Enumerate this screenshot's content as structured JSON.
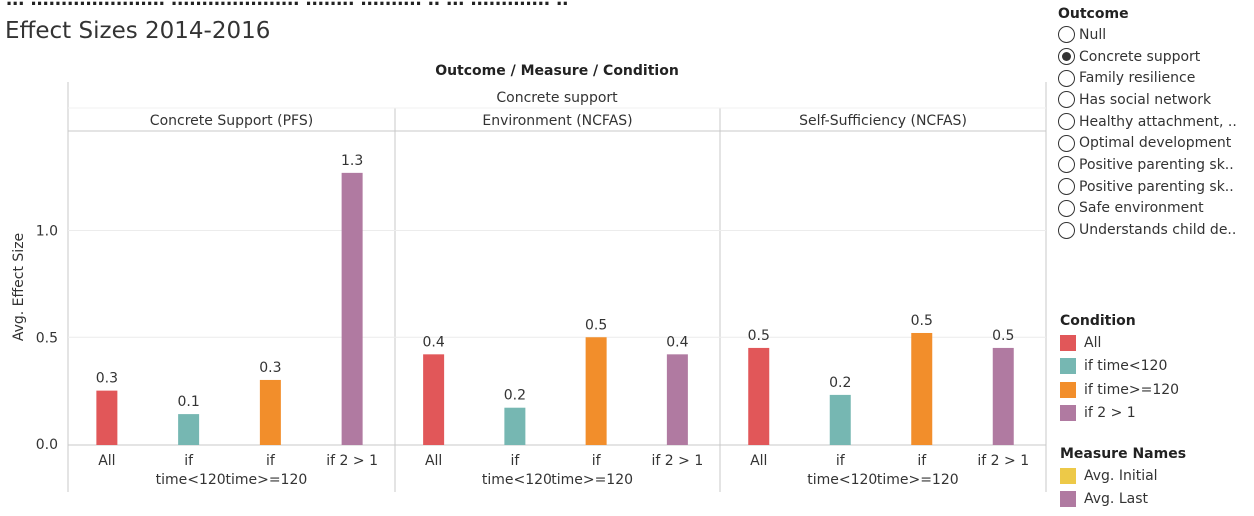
{
  "page": {
    "title_partial": "Effect Sizes 2014-2016",
    "top_cut_text": "... ...................... ..................... ........ .......... .. ... ............. .."
  },
  "chart_data": {
    "type": "bar",
    "header": "Outcome / Measure / Condition",
    "outcome": "Concrete support",
    "ylabel": "Avg. Effect Size",
    "ylim": [
      0,
      1.35
    ],
    "yticks": [
      0.0,
      0.5,
      1.0
    ],
    "ytick_labels": [
      "0.0",
      "0.5",
      "1.0"
    ],
    "categories": [
      "All",
      "if time<120",
      "if time>=120",
      "if 2 > 1"
    ],
    "category_label_lines": [
      [
        "All"
      ],
      [
        "if",
        "time<120"
      ],
      [
        "if",
        "time>=120"
      ],
      [
        "if 2 > 1"
      ]
    ],
    "panels": [
      {
        "measure": "Concrete Support (PFS)",
        "values": [
          0.25,
          0.14,
          0.3,
          1.27
        ],
        "labels": [
          "0.3",
          "0.1",
          "0.3",
          "1.3"
        ]
      },
      {
        "measure": "Environment (NCFAS)",
        "values": [
          0.42,
          0.17,
          0.5,
          0.42
        ],
        "labels": [
          "0.4",
          "0.2",
          "0.5",
          "0.4"
        ]
      },
      {
        "measure": "Self-Sufficiency (NCFAS)",
        "values": [
          0.45,
          0.23,
          0.52,
          0.45
        ],
        "labels": [
          "0.5",
          "0.2",
          "0.5",
          "0.5"
        ]
      }
    ],
    "grid": true
  },
  "colors": {
    "all": "#e15759",
    "lt120": "#76b7b2",
    "ge120": "#f28e2b",
    "two_gt_one": "#b07aa1",
    "avg_initial": "#edc948",
    "axis": "#c8c8c8",
    "grid": "#ececec",
    "text": "#333333"
  },
  "legend_outcome": {
    "title": "Outcome",
    "items": [
      "Null",
      "Concrete support",
      "Family resilience",
      "Has social network",
      "Healthy attachment, ..",
      "Optimal development",
      "Positive parenting sk..",
      "Positive parenting sk..",
      "Safe environment",
      "Understands child de.."
    ],
    "selected_index": 1
  },
  "legend_condition": {
    "title": "Condition",
    "items": [
      {
        "label": "All",
        "color": "#e15759"
      },
      {
        "label": "if time<120",
        "color": "#76b7b2"
      },
      {
        "label": "if time>=120",
        "color": "#f28e2b"
      },
      {
        "label": "if 2 > 1",
        "color": "#b07aa1"
      }
    ]
  },
  "legend_measure": {
    "title": "Measure Names",
    "items": [
      {
        "label": "Avg. Initial",
        "color": "#edc948"
      },
      {
        "label": "Avg. Last",
        "color": "#b07aa1"
      }
    ]
  }
}
